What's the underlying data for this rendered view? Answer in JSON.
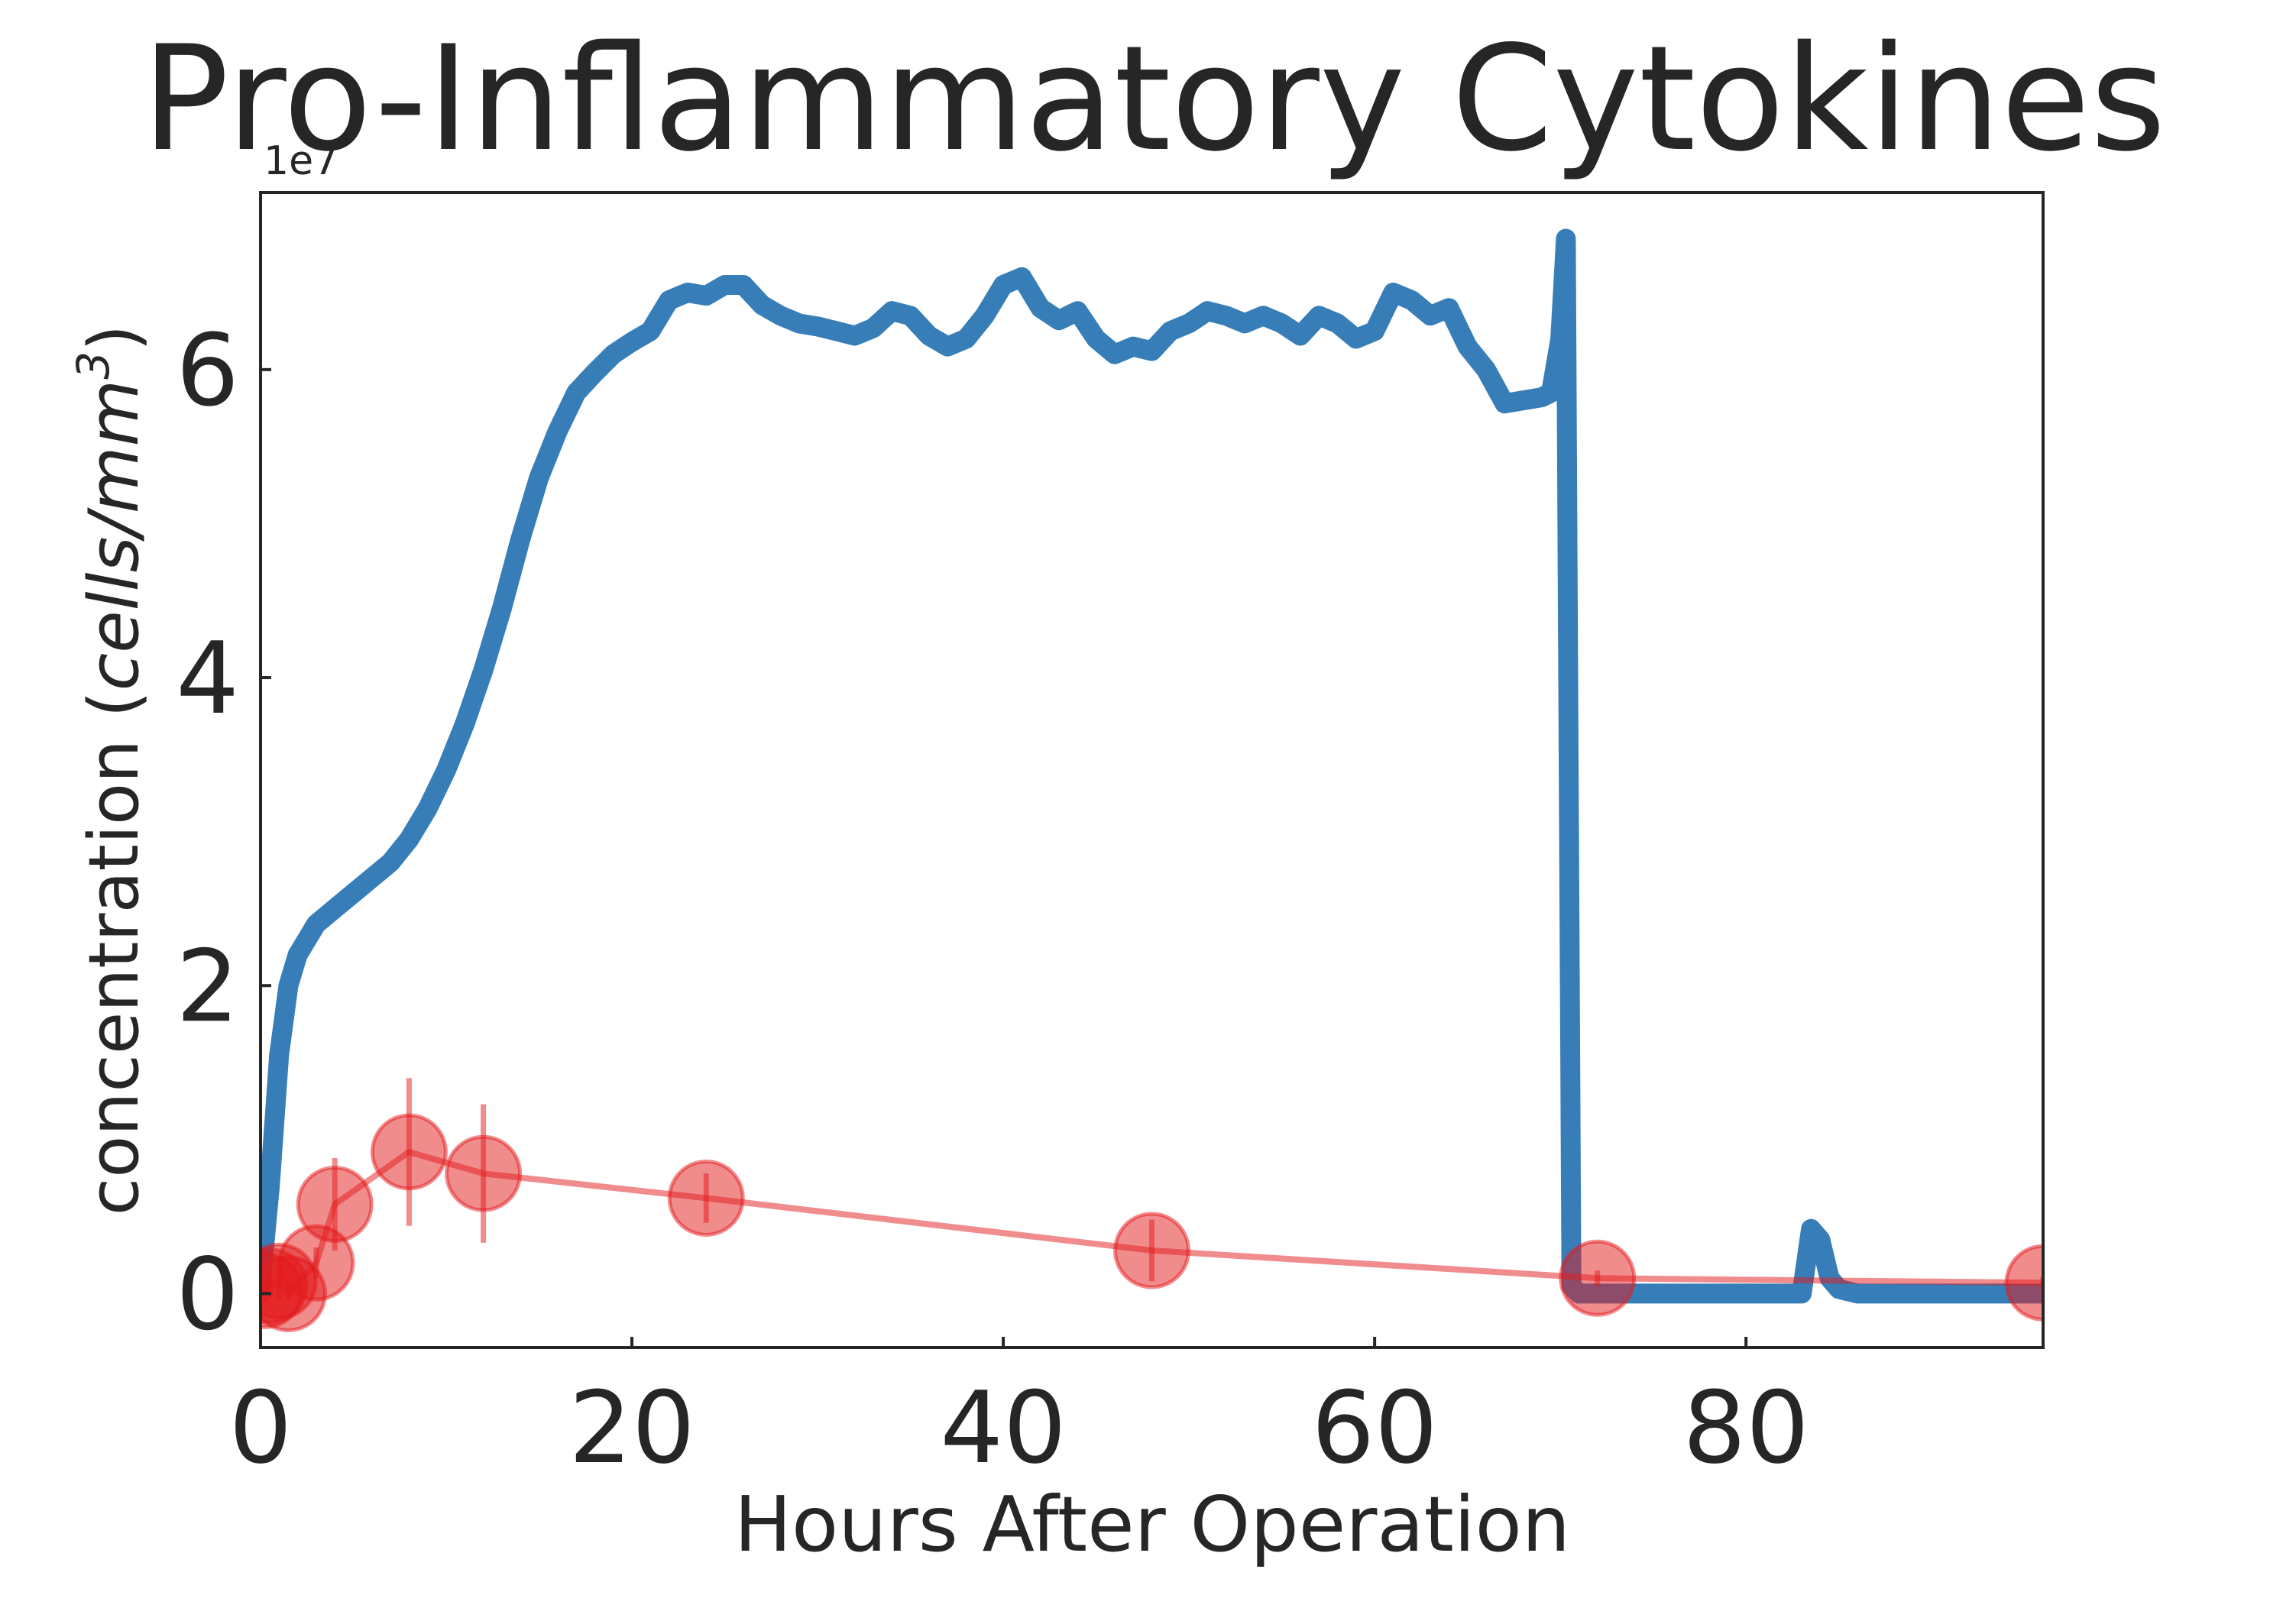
{
  "chart_data": {
    "type": "line",
    "title": "Pro-Inflammatory Cytokines",
    "xlabel": "Hours After Operation",
    "ylabel_text": "concentration (",
    "ylabel_units": "cells/mm",
    "ylabel_exponent": "3",
    "ylabel_close": ")",
    "y_offset_label": "1e7",
    "xlim": [
      0,
      96
    ],
    "ylim": [
      -0.35,
      7.15
    ],
    "y_scale_note": "values in units of 1e7",
    "xticks": [
      0,
      20,
      40,
      60,
      80
    ],
    "xtick_labels": [
      "0",
      "20",
      "40",
      "60",
      "80"
    ],
    "yticks": [
      0,
      2,
      4,
      6
    ],
    "ytick_labels": [
      "0",
      "2",
      "4",
      "6"
    ],
    "grid": false,
    "legend": "none",
    "colors": {
      "simulation": "#377eb8",
      "observed": "#e41a1c",
      "axes": "#262626",
      "text": "#262626"
    },
    "series": [
      {
        "kind": "simulation-line",
        "x": [
          0,
          0.5,
          1,
          1.5,
          2,
          3,
          4,
          5,
          6,
          7,
          8,
          9,
          10,
          11,
          12,
          13,
          14,
          15,
          16,
          17,
          18,
          19,
          20,
          21,
          22,
          23,
          24,
          25,
          26,
          27,
          28,
          29,
          30,
          31,
          32,
          33,
          34,
          35,
          36,
          37,
          38,
          39,
          40,
          41,
          42,
          43,
          44,
          45,
          46,
          47,
          48,
          49,
          50,
          51,
          52,
          53,
          54,
          55,
          56,
          57,
          58,
          59,
          60,
          61,
          62,
          63,
          64,
          65,
          66,
          67,
          68,
          69,
          69.5,
          70,
          70.3,
          70.6,
          71,
          75,
          80,
          83,
          83.5,
          84,
          84.5,
          85,
          86,
          88,
          90,
          96
        ],
        "y": [
          0.05,
          0.7,
          1.55,
          2.0,
          2.2,
          2.4,
          2.5,
          2.6,
          2.7,
          2.8,
          2.95,
          3.15,
          3.4,
          3.7,
          4.05,
          4.45,
          4.9,
          5.3,
          5.6,
          5.85,
          5.98,
          6.1,
          6.18,
          6.25,
          6.45,
          6.5,
          6.48,
          6.55,
          6.55,
          6.42,
          6.35,
          6.3,
          6.28,
          6.25,
          6.22,
          6.27,
          6.38,
          6.35,
          6.22,
          6.15,
          6.2,
          6.35,
          6.55,
          6.6,
          6.4,
          6.32,
          6.38,
          6.2,
          6.1,
          6.15,
          6.12,
          6.25,
          6.3,
          6.38,
          6.35,
          6.3,
          6.35,
          6.3,
          6.22,
          6.35,
          6.3,
          6.2,
          6.25,
          6.5,
          6.45,
          6.35,
          6.4,
          6.15,
          6.0,
          5.78,
          5.8,
          5.82,
          5.85,
          6.2,
          6.85,
          0.05,
          0.0,
          0.0,
          0.0,
          0.0,
          0.42,
          0.35,
          0.1,
          0.03,
          0.0,
          0.0,
          0.0,
          0.0
        ]
      },
      {
        "kind": "observed-points",
        "x": [
          0.25,
          0.5,
          1,
          1.5,
          3,
          4,
          8,
          12,
          24,
          48,
          72,
          96
        ],
        "y": [
          0.02,
          0.05,
          0.08,
          0.0,
          0.2,
          0.58,
          0.92,
          0.78,
          0.62,
          0.28,
          0.1,
          0.07
        ],
        "err": [
          0.08,
          0.08,
          0.12,
          0.05,
          0.1,
          0.3,
          0.48,
          0.45,
          0.16,
          0.2,
          0.05,
          0.04
        ]
      }
    ]
  }
}
